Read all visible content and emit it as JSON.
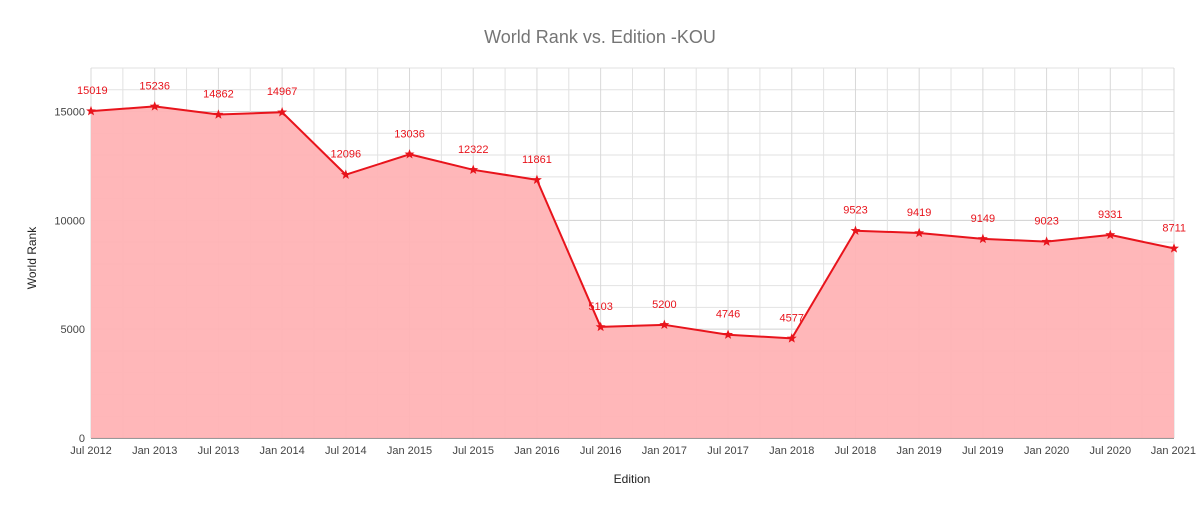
{
  "chart_data": {
    "type": "area",
    "title": "World Rank vs. Edition -KOU",
    "xlabel": "Edition",
    "ylabel": "World Rank",
    "ylim": [
      0,
      17000
    ],
    "y_ticks": [
      "0",
      "5000",
      "10000",
      "15000"
    ],
    "y_tick_values": [
      0,
      5000,
      10000,
      15000
    ],
    "grid": true,
    "legend": "none",
    "colors": {
      "line": "#e8141c",
      "fill": "#ffb3b5",
      "grid": "#e2e2e2"
    },
    "categories": [
      "Jul 2012",
      "Jan 2013",
      "Jul 2013",
      "Jan 2014",
      "Jul 2014",
      "Jan 2015",
      "Jul 2015",
      "Jan 2016",
      "Jul 2016",
      "Jan 2017",
      "Jul 2017",
      "Jan 2018",
      "Jul 2018",
      "Jan 2019",
      "Jul 2019",
      "Jan 2020",
      "Jul 2020",
      "Jan 2021"
    ],
    "values": [
      15019,
      15236,
      14862,
      14967,
      12096,
      13036,
      12322,
      11861,
      5103,
      5200,
      4746,
      4577,
      9523,
      9419,
      9149,
      9023,
      9331,
      8711
    ],
    "data_labels": [
      "15019",
      "15236",
      "14862",
      "14967",
      "12096",
      "13036",
      "12322",
      "11861",
      "5103",
      "5200",
      "4746",
      "4577",
      "9523",
      "9419",
      "9149",
      "9023",
      "9331",
      "8711"
    ]
  }
}
